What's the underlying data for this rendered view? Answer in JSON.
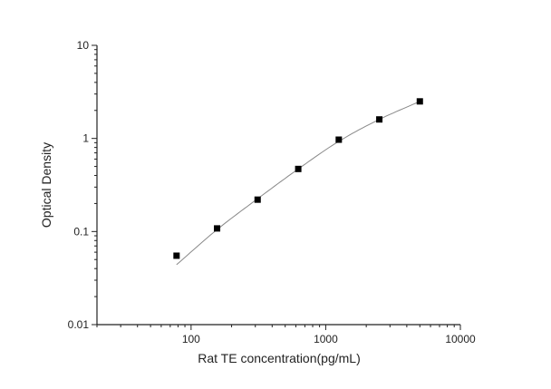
{
  "chart_data": {
    "type": "scatter",
    "title": "",
    "xlabel": "Rat TE concentration(pg/mL)",
    "ylabel": "Optical Density",
    "xscale": "log",
    "yscale": "log",
    "xlim": [
      20,
      10000
    ],
    "ylim": [
      0.01,
      10
    ],
    "x_ticks": [
      "100",
      "1000",
      "10000"
    ],
    "y_ticks": [
      "0.01",
      "0.1",
      "1",
      "10"
    ],
    "grid": false,
    "legend": "none",
    "marker_color": "#000000",
    "curve_color": "#888888",
    "series": [
      {
        "x": [
          78,
          156,
          312,
          625,
          1250,
          2500,
          5000
        ],
        "y": [
          0.055,
          0.108,
          0.22,
          0.47,
          0.97,
          1.6,
          2.5
        ]
      }
    ],
    "fit_curve": {
      "x": [
        78,
        156,
        312,
        625,
        1250,
        2500,
        5000
      ],
      "y": [
        0.044,
        0.105,
        0.225,
        0.47,
        0.93,
        1.6,
        2.5
      ]
    }
  }
}
